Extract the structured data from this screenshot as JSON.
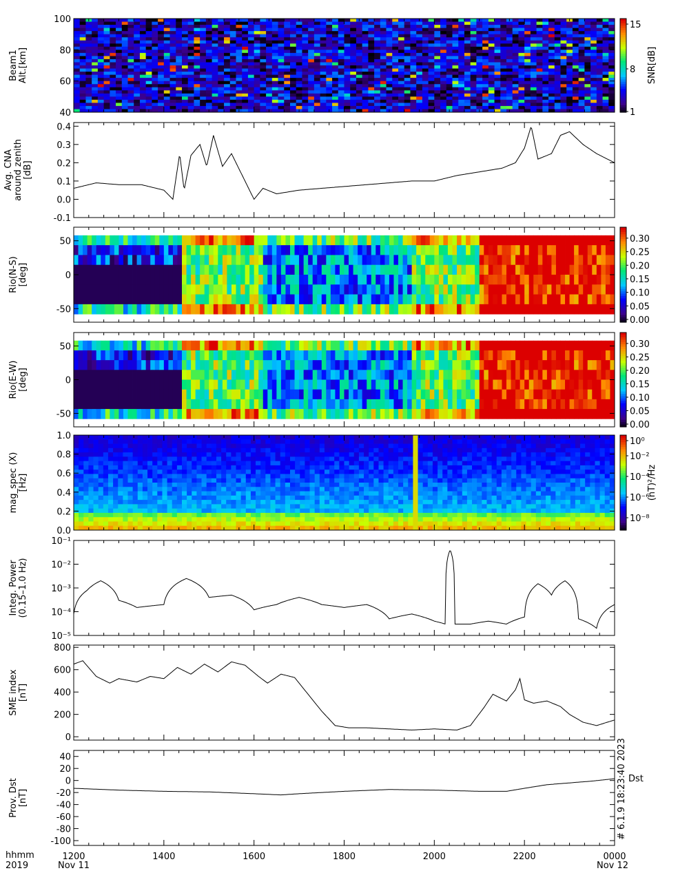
{
  "chart_data": [
    {
      "id": "beam1",
      "type": "heatmap",
      "ylabel": [
        "Beam1",
        "Alt.[km]"
      ],
      "ylim": [
        40,
        100
      ],
      "yticks": [
        40,
        60,
        80,
        100
      ],
      "colorbar": {
        "label": "SNR[dB]",
        "ticks": [
          "1",
          "8",
          "15"
        ],
        "range": [
          1,
          15
        ]
      }
    },
    {
      "id": "cna",
      "type": "line",
      "ylabel": [
        "Avg. CNA",
        "around zenith",
        "[dB]"
      ],
      "ylim": [
        -0.1,
        0.42
      ],
      "yticks": [
        "0.4",
        "0.3",
        "0.2",
        "0.1",
        "0.0",
        "-0.1"
      ],
      "x": [
        12.0,
        12.5,
        13.0,
        13.5,
        14.0,
        14.2,
        14.35,
        14.45,
        14.6,
        14.8,
        14.95,
        15.1,
        15.3,
        15.5,
        15.7,
        16.0,
        16.2,
        16.5,
        17.0,
        17.5,
        18.0,
        18.5,
        19.0,
        19.5,
        20.0,
        20.5,
        21.0,
        21.5,
        21.8,
        22.0,
        22.15,
        22.3,
        22.6,
        22.8,
        23.0,
        23.3,
        23.6,
        24.0
      ],
      "y": [
        0.06,
        0.09,
        0.08,
        0.08,
        0.05,
        0.0,
        0.25,
        0.05,
        0.24,
        0.3,
        0.18,
        0.35,
        0.18,
        0.25,
        0.15,
        0.0,
        0.06,
        0.03,
        0.05,
        0.06,
        0.07,
        0.08,
        0.09,
        0.1,
        0.1,
        0.13,
        0.15,
        0.17,
        0.2,
        0.28,
        0.4,
        0.22,
        0.25,
        0.35,
        0.37,
        0.3,
        0.25,
        0.2
      ]
    },
    {
      "id": "riometer_ns",
      "type": "heatmap",
      "ylabel": [
        "Rio(N-S)",
        "[deg]"
      ],
      "ylim": [
        -70,
        70
      ],
      "yticks": [
        "50",
        "0",
        "-50"
      ],
      "colorbar": {
        "label": "",
        "ticks": [
          "0.00",
          "0.05",
          "0.10",
          "0.15",
          "0.20",
          "0.25",
          "0.30"
        ],
        "range": [
          0,
          0.33
        ]
      }
    },
    {
      "id": "riometer_ew",
      "type": "heatmap",
      "ylabel": [
        "Rio(E-W)",
        "[deg]"
      ],
      "ylim": [
        -70,
        70
      ],
      "yticks": [
        "50",
        "0",
        "-50"
      ],
      "colorbar": {
        "label": "",
        "ticks": [
          "0.00",
          "0.05",
          "0.10",
          "0.15",
          "0.20",
          "0.25",
          "0.30"
        ],
        "range": [
          0,
          0.33
        ]
      }
    },
    {
      "id": "mag_spec",
      "type": "heatmap",
      "ylabel": [
        "mag_spec (X)",
        "[Hz]"
      ],
      "ylim": [
        0,
        1.0
      ],
      "yticks": [
        "1.0",
        "0.8",
        "0.6",
        "0.4",
        "0.2",
        "0.0"
      ],
      "colorbar": {
        "label": "(nT)²/Hz",
        "ticks": [
          "10⁰",
          "10⁻²",
          "10⁻⁴",
          "10⁻⁶",
          "10⁻⁸"
        ],
        "range": [
          -9,
          0.5
        ]
      }
    },
    {
      "id": "integ_power",
      "type": "line",
      "scale": "log",
      "ylabel": [
        "Integ. Power",
        "(0.15–1.0 Hz)"
      ],
      "ylim_exp": [
        -5,
        -1
      ],
      "yticks": [
        "10⁻¹",
        "10⁻²",
        "10⁻³",
        "10⁻⁴",
        "10⁻⁵"
      ],
      "x": [
        12.0,
        12.3,
        12.6,
        13.0,
        13.4,
        14.0,
        14.5,
        15.0,
        15.5,
        16.0,
        16.5,
        17.0,
        17.5,
        18.0,
        18.5,
        19.0,
        19.5,
        20.0,
        20.25,
        20.35,
        20.45,
        20.8,
        21.2,
        21.6,
        22.0,
        22.3,
        22.6,
        22.9,
        23.2,
        23.6,
        24.0
      ],
      "y": [
        8e-05,
        0.0008,
        0.002,
        0.0003,
        0.00015,
        0.0002,
        0.0025,
        0.0004,
        0.0005,
        0.00012,
        0.0002,
        0.0004,
        0.0002,
        0.00015,
        0.0002,
        5e-05,
        8e-05,
        4e-05,
        3e-05,
        0.04,
        3e-05,
        3e-05,
        4e-05,
        3e-05,
        6e-05,
        0.0015,
        0.0005,
        0.002,
        5e-05,
        2e-05,
        0.0002
      ]
    },
    {
      "id": "sme",
      "type": "line",
      "ylabel": [
        "SME index",
        "[nT]"
      ],
      "ylim": [
        -30,
        820
      ],
      "yticks": [
        "800",
        "600",
        "400",
        "200",
        "0"
      ],
      "x": [
        12.0,
        12.2,
        12.5,
        12.8,
        13.0,
        13.4,
        13.7,
        14.0,
        14.3,
        14.6,
        14.9,
        15.2,
        15.5,
        15.8,
        16.1,
        16.3,
        16.6,
        16.9,
        17.2,
        17.5,
        17.8,
        18.1,
        18.5,
        19.0,
        19.5,
        20.0,
        20.5,
        20.8,
        21.1,
        21.3,
        21.6,
        21.8,
        21.9,
        22.0,
        22.2,
        22.5,
        22.8,
        23.0,
        23.3,
        23.6,
        24.0
      ],
      "y": [
        650,
        680,
        540,
        480,
        520,
        490,
        540,
        520,
        620,
        560,
        650,
        580,
        670,
        640,
        540,
        480,
        560,
        530,
        380,
        230,
        100,
        80,
        80,
        70,
        60,
        70,
        60,
        100,
        260,
        380,
        320,
        420,
        520,
        330,
        300,
        320,
        270,
        200,
        130,
        100,
        150
      ]
    },
    {
      "id": "dst",
      "type": "line",
      "ylabel": [
        "Prov. Dst",
        "[nT]"
      ],
      "ylim": [
        -108,
        50
      ],
      "yticks": [
        "40",
        "20",
        "0",
        "-20",
        "-40",
        "-60",
        "-80",
        "-100"
      ],
      "series_label": "Dst",
      "x": [
        12.0,
        13.0,
        14.0,
        15.0,
        16.0,
        16.6,
        17.0,
        18.0,
        19.0,
        20.0,
        21.0,
        21.6,
        22.0,
        22.5,
        23.0,
        23.5,
        24.0
      ],
      "y": [
        -13,
        -16,
        -18,
        -19,
        -22,
        -24,
        -22,
        -18,
        -15,
        -16,
        -18,
        -18,
        -13,
        -7,
        -4,
        -1,
        3
      ]
    }
  ],
  "xaxis": {
    "ticks": [
      "1200",
      "1400",
      "1600",
      "1800",
      "2000",
      "2200",
      "0000"
    ],
    "label_left": [
      "hhmm",
      "2019"
    ],
    "date_start": "Nov 11",
    "date_end": "Nov 12"
  },
  "stamp": "# 6.1.9 18:23:40 2023"
}
